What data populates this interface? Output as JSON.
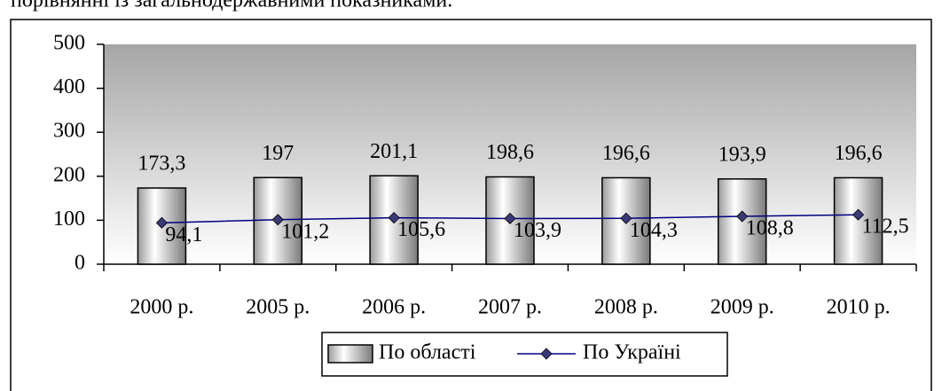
{
  "caption": "порівнянні із загальнодержавними показниками.",
  "chart_data": {
    "type": "bar",
    "categories": [
      "2000 р.",
      "2005 р.",
      "2006 р.",
      "2007 р.",
      "2008 р.",
      "2009 р.",
      "2010 р."
    ],
    "series": [
      {
        "name": "По області",
        "type": "bar",
        "color": "#808080",
        "values": [
          173.3,
          197,
          201.1,
          198.6,
          196.6,
          193.9,
          196.6
        ],
        "value_labels": [
          "173,3",
          "197",
          "201,1",
          "198,6",
          "196,6",
          "193,9",
          "196,6"
        ]
      },
      {
        "name": "По Україні",
        "type": "line",
        "color": "#000080",
        "values": [
          94.1,
          101.2,
          105.6,
          103.9,
          104.3,
          108.8,
          112.5
        ],
        "value_labels": [
          "94,1",
          "101,2",
          "105,6",
          "103,9",
          "104,3",
          "108,8",
          "112,5"
        ]
      }
    ],
    "ylim": [
      0,
      500
    ],
    "yticks": [
      0,
      100,
      200,
      300,
      400,
      500
    ],
    "legend": "bottom"
  }
}
